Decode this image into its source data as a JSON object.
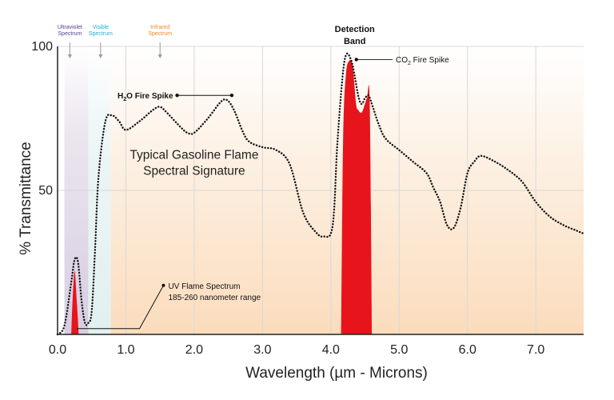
{
  "chart_data": {
    "type": "line",
    "title": "",
    "xlabel": "Wavelength (µm - Microns)",
    "ylabel": "% Transmittance",
    "xlim": [
      0,
      7.7
    ],
    "ylim": [
      0,
      100
    ],
    "grid": true,
    "x_ticks": [
      {
        "value": 0,
        "label": "0.0"
      },
      {
        "value": 1,
        "label": "1.0"
      },
      {
        "value": 2,
        "label": "2.0"
      },
      {
        "value": 3,
        "label": "3.0"
      },
      {
        "value": 4,
        "label": "4.0"
      },
      {
        "value": 5,
        "label": "5.0"
      },
      {
        "value": 6,
        "label": "6.0"
      },
      {
        "value": 7,
        "label": "7.0"
      }
    ],
    "y_ticks": [
      {
        "value": 50,
        "label": "50"
      },
      {
        "value": 100,
        "label": "100"
      }
    ],
    "regions": [
      {
        "name": "Ultraviolet Spectrum",
        "lines": [
          "Ultraviolet",
          "Spectrum"
        ],
        "x": [
          0.1,
          0.45
        ],
        "arrow_x": 0.18,
        "color": "#5a3e8e",
        "fill": "#e2dbe8"
      },
      {
        "name": "Visible Spectrum",
        "lines": [
          "Visible",
          "Spectrum"
        ],
        "x": [
          0.45,
          0.78
        ],
        "arrow_x": 0.63,
        "color": "#29a8d6",
        "fill": "#eaf4f5"
      },
      {
        "name": "Infrared Spectrum",
        "lines": [
          "Infrared",
          "Spectrum"
        ],
        "x": [
          0.78,
          7.7
        ],
        "arrow_x": 1.5,
        "color": "#f08a2c",
        "fill": "#fce7d4"
      }
    ],
    "series": [
      {
        "type": "line",
        "style": "dotted",
        "x": [
          0,
          0.1,
          0.2,
          0.25,
          0.3,
          0.35,
          0.4,
          0.45,
          0.5,
          0.55,
          0.6,
          0.7,
          0.8,
          0.9,
          1.0,
          1.2,
          1.4,
          1.5,
          1.6,
          1.8,
          1.9,
          2.0,
          2.2,
          2.4,
          2.5,
          2.6,
          2.7,
          2.8,
          3.0,
          3.2,
          3.4,
          3.6,
          3.8,
          3.9,
          4.0,
          4.05,
          4.1,
          4.2,
          4.3,
          4.4,
          4.45,
          4.5,
          4.55,
          4.6,
          4.7,
          4.8,
          5.0,
          5.2,
          5.4,
          5.5,
          5.6,
          5.7,
          5.8,
          5.9,
          6.0,
          6.1,
          6.2,
          6.4,
          6.6,
          6.8,
          7.0,
          7.2,
          7.4,
          7.6,
          7.7
        ],
        "y": [
          0,
          3,
          18,
          26,
          25,
          12,
          4,
          4,
          8,
          30,
          55,
          74,
          76,
          74,
          71,
          74,
          78,
          79,
          77,
          72,
          70,
          70,
          75,
          81,
          81,
          77,
          71,
          67,
          65,
          64,
          59,
          42,
          35,
          34,
          35,
          44,
          68,
          95,
          95,
          83,
          80,
          82,
          83,
          80,
          73,
          68,
          64,
          60,
          56,
          51,
          46,
          38,
          37,
          44,
          56,
          60,
          62,
          60,
          57,
          53,
          46,
          41,
          38,
          36,
          35
        ]
      },
      {
        "name": "UV Flame Spectrum",
        "type": "area",
        "color": "#e8141c",
        "x": [
          0.2,
          0.22,
          0.25,
          0.28,
          0.31
        ],
        "y": [
          0,
          12,
          22,
          12,
          0
        ]
      },
      {
        "name": "CO2 Fire Spike",
        "type": "area",
        "color": "#e8141c",
        "x": [
          4.15,
          4.18,
          4.22,
          4.27,
          4.32,
          4.37,
          4.4,
          4.45,
          4.5,
          4.53,
          4.57,
          4.6
        ],
        "y": [
          0,
          68,
          90,
          95,
          93,
          80,
          78,
          77,
          80,
          82,
          80,
          0
        ]
      }
    ],
    "annotations": {
      "detection_band": {
        "lines": [
          "Detection",
          "Band"
        ],
        "x": 4.35
      },
      "co2": {
        "prefix": "CO",
        "sub": "2",
        "suffix": " Fire Spike",
        "x": 4.35,
        "y": 96,
        "x_text": 4.95
      },
      "h2o": {
        "prefix": "H",
        "sub": "2",
        "suffix": "O Fire Spike",
        "x_start": 1.75,
        "x_end": 2.55,
        "y": 83
      },
      "signature": {
        "lines": [
          "Typical Gasoline Flame",
          "Spectral Signature"
        ],
        "x": 2.0,
        "y": 61
      },
      "uv": {
        "lines": [
          "UV Flame Spectrum",
          "185-260 nanometer range"
        ],
        "x": 1.55,
        "y": 17
      },
      "uv_leader": {
        "start_x": 0.28,
        "mid_x": 1.2,
        "bottom_y": 2,
        "end_x": 1.55,
        "end_y": 17
      }
    }
  }
}
